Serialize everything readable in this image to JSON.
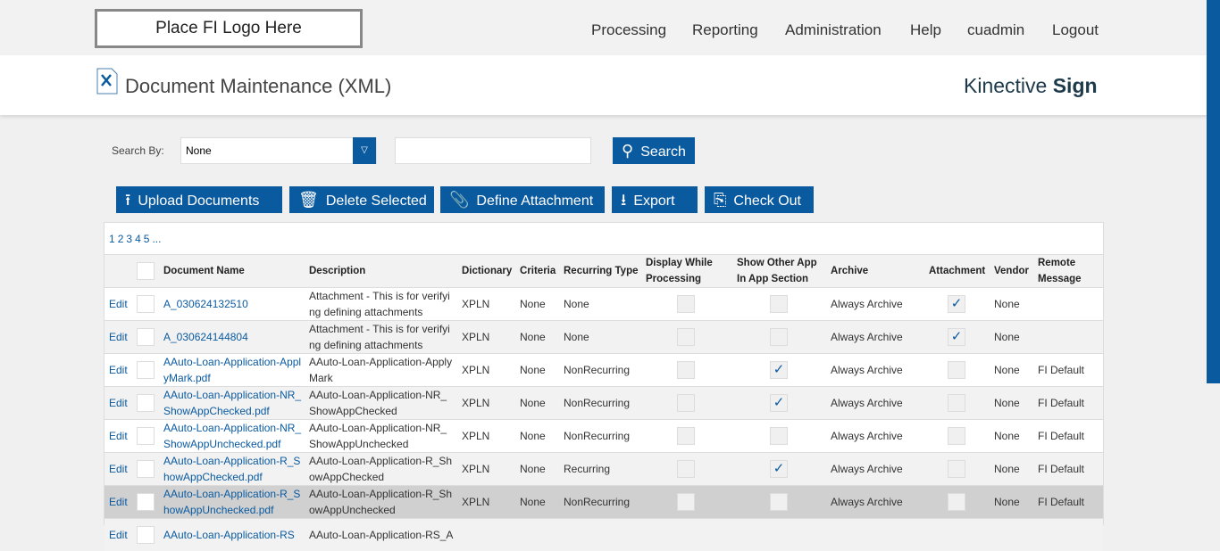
{
  "header": {
    "logo": "Place FI Logo Here",
    "nav": [
      "Processing",
      "Reporting",
      "Administration",
      "Help",
      "cuadmin",
      "Logout"
    ],
    "page_title": "Document Maintenance (XML)",
    "brand_light": "Kinective",
    "brand_bold": "Sign"
  },
  "search": {
    "label": "Search By:",
    "selected": "None",
    "input_value": "",
    "button": "Search"
  },
  "toolbar": {
    "upload": "Upload Documents",
    "delete": "Delete Selected",
    "define": "Define Attachment",
    "export": "Export",
    "checkout": "Check Out"
  },
  "pagination": [
    "1",
    "2",
    "3",
    "4",
    "5",
    "..."
  ],
  "table": {
    "headers": [
      "Document Name",
      "Description",
      "Dictionary",
      "Criteria",
      "Recurring Type",
      "Display While Processing",
      "Show Other App In App Section",
      "Archive",
      "Attachment",
      "Vendor",
      "Remote Message"
    ],
    "edit_label": "Edit",
    "rows": [
      {
        "name": "A_030624132510",
        "desc": "Attachment - This is for verifying defining attachments",
        "dict": "XPLN",
        "criteria": "None",
        "recurring": "None",
        "display": false,
        "show_other": false,
        "archive": "Always Archive",
        "attachment": true,
        "vendor": "None",
        "remote": ""
      },
      {
        "name": "A_030624144804",
        "desc": "Attachment - This is for verifying defining attachments",
        "dict": "XPLN",
        "criteria": "None",
        "recurring": "None",
        "display": false,
        "show_other": false,
        "archive": "Always Archive",
        "attachment": true,
        "vendor": "None",
        "remote": ""
      },
      {
        "name": "AAuto-Loan-Application-ApplyMark.pdf",
        "desc": "AAuto-Loan-Application-ApplyMark",
        "dict": "XPLN",
        "criteria": "None",
        "recurring": "NonRecurring",
        "display": false,
        "show_other": true,
        "archive": "Always Archive",
        "attachment": false,
        "vendor": "None",
        "remote": "FI Default"
      },
      {
        "name": "AAuto-Loan-Application-NR_ShowAppChecked.pdf",
        "desc": "AAuto-Loan-Application-NR_ShowAppChecked",
        "dict": "XPLN",
        "criteria": "None",
        "recurring": "NonRecurring",
        "display": false,
        "show_other": true,
        "archive": "Always Archive",
        "attachment": false,
        "vendor": "None",
        "remote": "FI Default"
      },
      {
        "name": "AAuto-Loan-Application-NR_ShowAppUnchecked.pdf",
        "desc": "AAuto-Loan-Application-NR_ShowAppUnchecked",
        "dict": "XPLN",
        "criteria": "None",
        "recurring": "NonRecurring",
        "display": false,
        "show_other": false,
        "archive": "Always Archive",
        "attachment": false,
        "vendor": "None",
        "remote": "FI Default"
      },
      {
        "name": "AAuto-Loan-Application-R_ShowAppChecked.pdf",
        "desc": "AAuto-Loan-Application-R_ShowAppChecked",
        "dict": "XPLN",
        "criteria": "None",
        "recurring": "Recurring",
        "display": false,
        "show_other": true,
        "archive": "Always Archive",
        "attachment": false,
        "vendor": "None",
        "remote": "FI Default"
      },
      {
        "name": "AAuto-Loan-Application-R_ShowAppUnchecked.pdf",
        "desc": "AAuto-Loan-Application-R_ShowAppUnchecked",
        "dict": "XPLN",
        "criteria": "None",
        "recurring": "NonRecurring",
        "display": false,
        "show_other": false,
        "archive": "Always Archive",
        "attachment": false,
        "vendor": "None",
        "remote": "FI Default"
      },
      {
        "name": "AAuto-Loan-Application-RS",
        "desc": "AAuto-Loan-Application-RS_A",
        "dict": "",
        "criteria": "",
        "recurring": "",
        "display": false,
        "show_other": false,
        "archive": "",
        "attachment": false,
        "vendor": "",
        "remote": ""
      }
    ]
  },
  "colors": {
    "primary": "#0a5aa0",
    "highlight_row": "#d0d0d0"
  }
}
